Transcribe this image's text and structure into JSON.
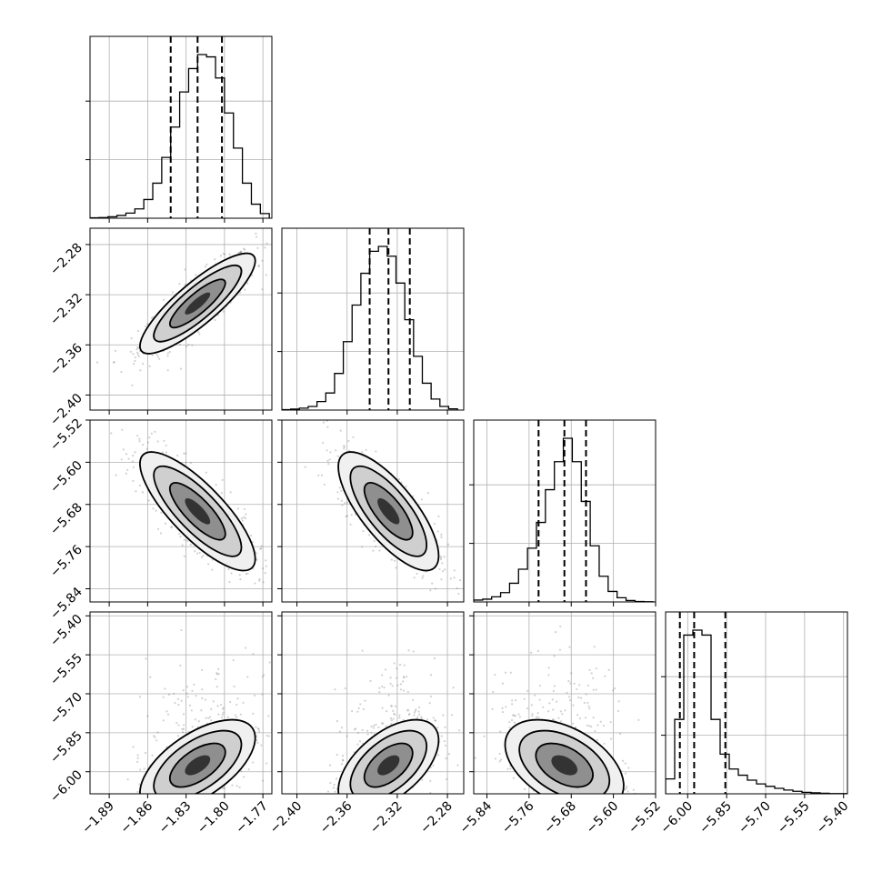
{
  "chart_data": {
    "type": "corner",
    "parameters": [
      {
        "index": 0,
        "range": [
          -1.905,
          -1.763
        ],
        "ticks": [
          -1.89,
          -1.86,
          -1.83,
          -1.8,
          -1.77
        ],
        "tick_labels": [
          "−1.89",
          "−1.86",
          "−1.83",
          "−1.80",
          "−1.77"
        ],
        "quantiles": [
          -1.842,
          -1.821,
          -1.802
        ],
        "median": -1.821,
        "sigma": 0.018
      },
      {
        "index": 1,
        "range": [
          -2.412,
          -2.267
        ],
        "ticks": [
          -2.4,
          -2.36,
          -2.32,
          -2.28
        ],
        "tick_labels": [
          "−2.40",
          "−2.36",
          "−2.32",
          "−2.28"
        ],
        "quantiles": [
          -2.342,
          -2.327,
          -2.31
        ],
        "median": -2.327,
        "sigma": 0.016
      },
      {
        "index": 2,
        "range": [
          -5.865,
          -5.52
        ],
        "ticks": [
          -5.84,
          -5.76,
          -5.68,
          -5.6,
          -5.52
        ],
        "tick_labels": [
          "−5.84",
          "−5.76",
          "−5.68",
          "−5.60",
          "−5.52"
        ],
        "quantiles": [
          -5.742,
          -5.693,
          -5.652
        ],
        "median": -5.693,
        "sigma": 0.045
      },
      {
        "index": 3,
        "range": [
          -6.085,
          -5.385
        ],
        "ticks": [
          -6.0,
          -5.85,
          -5.7,
          -5.55,
          -5.4
        ],
        "tick_labels": [
          "−6.00",
          "−5.85",
          "−5.70",
          "−5.55",
          "−5.40"
        ],
        "quantiles": [
          -6.03,
          -5.975,
          -5.855
        ],
        "median": -5.975,
        "sigma": 0.07
      }
    ],
    "histograms": [
      {
        "param": 0,
        "bins": [
          -1.905,
          -1.898,
          -1.891,
          -1.884,
          -1.877,
          -1.87,
          -1.863,
          -1.856,
          -1.849,
          -1.842,
          -1.835,
          -1.828,
          -1.821,
          -1.814,
          -1.807,
          -1.8,
          -1.793,
          -1.786,
          -1.779,
          -1.772,
          -1.765
        ],
        "counts": [
          2,
          3,
          6,
          12,
          22,
          40,
          80,
          150,
          260,
          390,
          540,
          640,
          700,
          690,
          600,
          450,
          300,
          150,
          60,
          20
        ]
      },
      {
        "param": 1,
        "bins": [
          -2.412,
          -2.405,
          -2.398,
          -2.391,
          -2.384,
          -2.377,
          -2.37,
          -2.363,
          -2.356,
          -2.349,
          -2.342,
          -2.335,
          -2.328,
          -2.321,
          -2.314,
          -2.307,
          -2.3,
          -2.293,
          -2.286,
          -2.279,
          -2.272
        ],
        "counts": [
          2,
          4,
          8,
          15,
          35,
          70,
          150,
          280,
          430,
          560,
          650,
          670,
          630,
          520,
          370,
          220,
          110,
          45,
          15,
          5
        ]
      },
      {
        "param": 2,
        "bins": [
          -5.865,
          -5.848,
          -5.831,
          -5.814,
          -5.797,
          -5.78,
          -5.763,
          -5.746,
          -5.729,
          -5.712,
          -5.695,
          -5.678,
          -5.661,
          -5.644,
          -5.627,
          -5.61,
          -5.593,
          -5.576,
          -5.559,
          -5.542,
          -5.525
        ],
        "counts": [
          8,
          12,
          22,
          40,
          80,
          140,
          230,
          340,
          480,
          600,
          700,
          600,
          430,
          240,
          110,
          45,
          18,
          6,
          2,
          1
        ]
      },
      {
        "param": 3,
        "bins": [
          -6.085,
          -6.05,
          -6.015,
          -5.98,
          -5.945,
          -5.91,
          -5.875,
          -5.84,
          -5.805,
          -5.77,
          -5.735,
          -5.7,
          -5.665,
          -5.63,
          -5.595,
          -5.56,
          -5.525,
          -5.49,
          -5.455,
          -5.42,
          -5.385
        ],
        "counts": [
          60,
          300,
          640,
          660,
          640,
          300,
          160,
          100,
          75,
          55,
          40,
          30,
          22,
          15,
          10,
          6,
          4,
          2,
          1,
          1
        ]
      }
    ],
    "correlations": [
      {
        "x": 0,
        "y": 1,
        "rho": 0.85
      },
      {
        "x": 0,
        "y": 2,
        "rho": -0.8
      },
      {
        "x": 1,
        "y": 2,
        "rho": -0.75
      },
      {
        "x": 0,
        "y": 3,
        "rho": 0.6
      },
      {
        "x": 1,
        "y": 3,
        "rho": 0.55
      },
      {
        "x": 2,
        "y": 3,
        "rho": -0.45
      }
    ],
    "grid": true
  }
}
